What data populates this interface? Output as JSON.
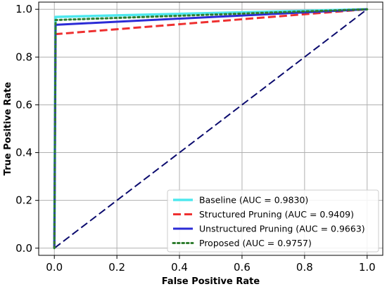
{
  "chart_data": {
    "type": "line",
    "xlabel": "False Positive Rate",
    "ylabel": "True Positive Rate",
    "xlim": [
      -0.05,
      1.05
    ],
    "ylim": [
      -0.03,
      1.03
    ],
    "x_ticks": [
      "0.0",
      "0.2",
      "0.4",
      "0.6",
      "0.8",
      "1.0"
    ],
    "y_ticks": [
      "0.0",
      "0.2",
      "0.4",
      "0.6",
      "0.8",
      "1.0"
    ],
    "grid": true,
    "legend_position": "bottom-right",
    "series": [
      {
        "name": "Baseline (AUC = 0.9830)",
        "color": "#4ee8ee",
        "style": "solid",
        "x": [
          0,
          0.004,
          1
        ],
        "y": [
          0,
          0.968,
          1
        ]
      },
      {
        "name": "Structured Pruning  (AUC = 0.9409)",
        "color": "#ee3030",
        "style": "dashed",
        "x": [
          0,
          0.004,
          1
        ],
        "y": [
          0,
          0.896,
          1
        ]
      },
      {
        "name": "Unstructured Pruning  (AUC = 0.9663)",
        "color": "#2b2bd6",
        "style": "solid",
        "x": [
          0,
          0.004,
          1
        ],
        "y": [
          0,
          0.935,
          1
        ]
      },
      {
        "name": "Proposed (AUC = 0.9757)",
        "color": "#2e7d2e",
        "style": "dotted",
        "x": [
          0,
          0.004,
          1
        ],
        "y": [
          0,
          0.955,
          1
        ]
      }
    ],
    "reference_line": {
      "color": "#0b0b6e",
      "style": "dashed",
      "x": [
        0,
        1
      ],
      "y": [
        0,
        1
      ]
    }
  }
}
